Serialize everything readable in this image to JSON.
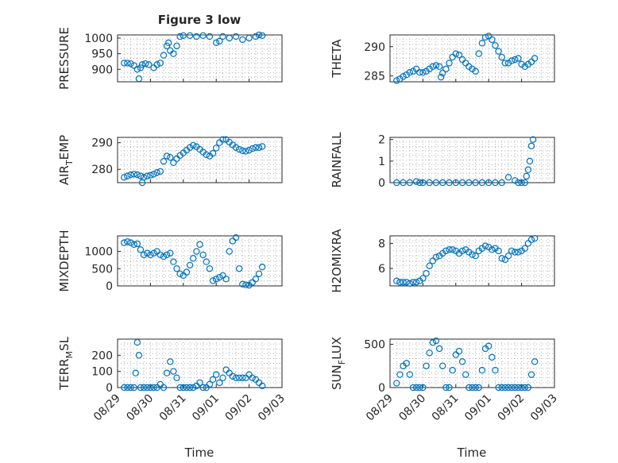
{
  "figure": {
    "title": "Figure 3 low",
    "xlabel": "Time",
    "xticks": [
      "08/29",
      "08/30",
      "08/31",
      "09/01",
      "09/02",
      "09/03"
    ],
    "marker_color": "#0072bd"
  },
  "chart_data": [
    {
      "type": "scatter",
      "title": "Figure 3 low",
      "ylabel": "PRESSURE",
      "xlim": [
        0,
        5
      ],
      "ylim": [
        860,
        1010
      ],
      "yticks": [
        900,
        950,
        1000
      ],
      "grid": true,
      "x": [
        0.2,
        0.3,
        0.4,
        0.5,
        0.6,
        0.65,
        0.7,
        0.75,
        0.85,
        0.95,
        1.1,
        1.2,
        1.3,
        1.4,
        1.5,
        1.55,
        1.6,
        1.7,
        1.8,
        1.9,
        2.0,
        2.2,
        2.4,
        2.6,
        2.8,
        3.0,
        3.1,
        3.2,
        3.4,
        3.6,
        3.8,
        4.0,
        4.2,
        4.3,
        4.4
      ],
      "y": [
        920,
        920,
        918,
        912,
        900,
        870,
        905,
        915,
        918,
        915,
        905,
        915,
        920,
        945,
        975,
        985,
        960,
        950,
        975,
        1005,
        1008,
        1008,
        1005,
        1008,
        1005,
        985,
        990,
        1005,
        1000,
        1005,
        995,
        1000,
        1005,
        1010,
        1008
      ]
    },
    {
      "type": "scatter",
      "ylabel": "THETA",
      "xlim": [
        0,
        5
      ],
      "ylim": [
        284,
        292
      ],
      "yticks": [
        285,
        290
      ],
      "grid": true,
      "x": [
        0.2,
        0.3,
        0.4,
        0.5,
        0.6,
        0.7,
        0.8,
        0.9,
        1.0,
        1.1,
        1.2,
        1.3,
        1.4,
        1.5,
        1.55,
        1.6,
        1.7,
        1.8,
        1.9,
        2.0,
        2.1,
        2.2,
        2.3,
        2.4,
        2.5,
        2.6,
        2.7,
        2.8,
        2.9,
        3.0,
        3.1,
        3.2,
        3.3,
        3.4,
        3.5,
        3.6,
        3.7,
        3.8,
        3.9,
        4.0,
        4.1,
        4.2,
        4.3,
        4.4
      ],
      "y": [
        284.2,
        284.5,
        284.9,
        285.2,
        285.6,
        285.8,
        286.2,
        285.6,
        285.6,
        285.8,
        286.2,
        286.6,
        286.8,
        286.6,
        284.8,
        285.5,
        286.2,
        287.2,
        288.2,
        288.8,
        288.6,
        287.8,
        287.2,
        286.6,
        286.2,
        285.8,
        288.8,
        290.6,
        291.6,
        291.8,
        291.2,
        290.2,
        289.2,
        288.2,
        287.2,
        287.2,
        287.6,
        287.8,
        288.0,
        287.0,
        286.6,
        287.0,
        287.4,
        288.0
      ]
    },
    {
      "type": "scatter",
      "ylabel": "AIR_TEMP",
      "xlim": [
        0,
        5
      ],
      "ylim": [
        275,
        292
      ],
      "yticks": [
        280,
        290
      ],
      "grid": true,
      "x": [
        0.2,
        0.3,
        0.4,
        0.5,
        0.6,
        0.7,
        0.75,
        0.8,
        0.9,
        1.0,
        1.1,
        1.2,
        1.3,
        1.4,
        1.5,
        1.6,
        1.7,
        1.8,
        1.9,
        2.0,
        2.1,
        2.2,
        2.3,
        2.4,
        2.5,
        2.6,
        2.7,
        2.8,
        2.9,
        3.0,
        3.1,
        3.2,
        3.3,
        3.4,
        3.5,
        3.6,
        3.7,
        3.8,
        3.9,
        4.0,
        4.1,
        4.2,
        4.3,
        4.4
      ],
      "y": [
        277.0,
        277.5,
        278.0,
        278.2,
        278.0,
        277.5,
        275.0,
        277.0,
        277.5,
        277.8,
        278.2,
        278.8,
        279.2,
        283.0,
        285.0,
        284.5,
        282.5,
        284.0,
        285.2,
        286.2,
        287.2,
        288.2,
        289.0,
        288.5,
        287.5,
        286.5,
        285.5,
        285.0,
        286.0,
        288.0,
        290.0,
        291.2,
        291.2,
        290.2,
        289.2,
        288.2,
        287.5,
        287.0,
        286.8,
        287.2,
        287.8,
        288.2,
        288.2,
        288.6
      ]
    },
    {
      "type": "scatter",
      "ylabel": "RAINFALL",
      "xlim": [
        0,
        5
      ],
      "ylim": [
        0,
        2.1
      ],
      "yticks": [
        0,
        1,
        2
      ],
      "grid": true,
      "x": [
        0.2,
        0.4,
        0.6,
        0.8,
        0.9,
        1.0,
        1.2,
        1.4,
        1.6,
        1.8,
        2.0,
        2.2,
        2.4,
        2.6,
        2.8,
        3.0,
        3.2,
        3.4,
        3.6,
        3.8,
        3.9,
        4.0,
        4.1,
        4.15,
        4.2,
        4.25,
        4.3,
        4.35
      ],
      "y": [
        0,
        0,
        0,
        0.05,
        0,
        0,
        0,
        0,
        0,
        0,
        0,
        0,
        0,
        0,
        0,
        0,
        0,
        0,
        0.25,
        0.1,
        0,
        0,
        0,
        0.3,
        0.6,
        1.0,
        1.7,
        2.0
      ]
    },
    {
      "type": "scatter",
      "ylabel": "MIXDEPTH",
      "xlim": [
        0,
        5
      ],
      "ylim": [
        0,
        1450
      ],
      "yticks": [
        0,
        500,
        1000
      ],
      "grid": true,
      "x": [
        0.2,
        0.3,
        0.4,
        0.5,
        0.6,
        0.7,
        0.8,
        0.9,
        1.0,
        1.1,
        1.2,
        1.3,
        1.4,
        1.5,
        1.6,
        1.7,
        1.8,
        1.9,
        2.0,
        2.1,
        2.2,
        2.3,
        2.4,
        2.5,
        2.6,
        2.7,
        2.8,
        2.9,
        3.0,
        3.1,
        3.2,
        3.3,
        3.4,
        3.5,
        3.6,
        3.7,
        3.8,
        3.9,
        4.0,
        4.1,
        4.2,
        4.3,
        4.4
      ],
      "y": [
        1250,
        1280,
        1250,
        1200,
        1220,
        1050,
        900,
        950,
        900,
        950,
        1000,
        900,
        850,
        900,
        950,
        700,
        500,
        350,
        300,
        400,
        600,
        800,
        1000,
        1200,
        900,
        700,
        500,
        150,
        200,
        250,
        300,
        200,
        1000,
        1300,
        1400,
        500,
        50,
        30,
        20,
        100,
        200,
        350,
        550
      ]
    },
    {
      "type": "scatter",
      "ylabel": "H2OMIXRA",
      "xlim": [
        0,
        5
      ],
      "ylim": [
        4.6,
        8.6
      ],
      "yticks": [
        6,
        8
      ],
      "grid": true,
      "x": [
        0.2,
        0.3,
        0.4,
        0.5,
        0.6,
        0.7,
        0.8,
        0.9,
        1.0,
        1.1,
        1.2,
        1.3,
        1.4,
        1.5,
        1.6,
        1.7,
        1.8,
        1.9,
        2.0,
        2.1,
        2.2,
        2.3,
        2.4,
        2.5,
        2.6,
        2.7,
        2.8,
        2.9,
        3.0,
        3.1,
        3.2,
        3.3,
        3.4,
        3.5,
        3.6,
        3.7,
        3.8,
        3.9,
        4.0,
        4.1,
        4.2,
        4.3,
        4.4
      ],
      "y": [
        5.0,
        4.9,
        4.9,
        4.9,
        4.8,
        4.9,
        4.9,
        5.0,
        5.2,
        5.6,
        6.2,
        6.6,
        6.9,
        7.0,
        7.2,
        7.4,
        7.5,
        7.5,
        7.4,
        7.2,
        7.4,
        7.5,
        7.3,
        7.1,
        7.0,
        7.4,
        7.6,
        7.8,
        7.7,
        7.5,
        7.6,
        7.4,
        6.8,
        6.7,
        7.0,
        7.4,
        7.3,
        7.3,
        7.4,
        7.6,
        8.0,
        8.3,
        8.4
      ]
    },
    {
      "type": "scatter",
      "ylabel": "TERR_MSL",
      "xlim": [
        0,
        5
      ],
      "ylim": [
        0,
        300
      ],
      "yticks": [
        0,
        100,
        200
      ],
      "grid": true,
      "x": [
        0.2,
        0.3,
        0.4,
        0.5,
        0.55,
        0.6,
        0.65,
        0.7,
        0.8,
        0.9,
        1.0,
        1.1,
        1.2,
        1.3,
        1.4,
        1.5,
        1.6,
        1.7,
        1.8,
        1.9,
        2.0,
        2.1,
        2.2,
        2.3,
        2.4,
        2.5,
        2.6,
        2.7,
        2.8,
        2.9,
        3.0,
        3.1,
        3.2,
        3.3,
        3.4,
        3.5,
        3.6,
        3.7,
        3.8,
        3.9,
        4.0,
        4.1,
        4.2,
        4.3,
        4.4
      ],
      "y": [
        0,
        0,
        0,
        0,
        90,
        280,
        200,
        0,
        0,
        0,
        0,
        0,
        0,
        20,
        0,
        90,
        160,
        100,
        60,
        0,
        0,
        0,
        0,
        0,
        10,
        30,
        0,
        0,
        20,
        50,
        80,
        30,
        60,
        110,
        90,
        70,
        60,
        60,
        60,
        60,
        80,
        60,
        50,
        30,
        10
      ]
    },
    {
      "type": "scatter",
      "ylabel": "SUN_FLUX",
      "xlim": [
        0,
        5
      ],
      "ylim": [
        0,
        560
      ],
      "yticks": [
        0,
        500
      ],
      "grid": true,
      "x": [
        0.2,
        0.3,
        0.4,
        0.5,
        0.6,
        0.7,
        0.8,
        0.9,
        1.0,
        1.1,
        1.2,
        1.3,
        1.4,
        1.5,
        1.6,
        1.7,
        1.8,
        1.9,
        2.0,
        2.1,
        2.2,
        2.3,
        2.4,
        2.5,
        2.6,
        2.7,
        2.8,
        2.9,
        3.0,
        3.1,
        3.2,
        3.3,
        3.4,
        3.5,
        3.6,
        3.7,
        3.8,
        3.9,
        4.0,
        4.1,
        4.2,
        4.3,
        4.4
      ],
      "y": [
        50,
        150,
        250,
        280,
        150,
        0,
        0,
        0,
        0,
        250,
        400,
        520,
        540,
        450,
        250,
        0,
        0,
        200,
        380,
        420,
        300,
        150,
        0,
        0,
        0,
        0,
        200,
        450,
        480,
        350,
        200,
        0,
        0,
        0,
        0,
        0,
        0,
        0,
        0,
        0,
        0,
        150,
        300
      ]
    }
  ]
}
